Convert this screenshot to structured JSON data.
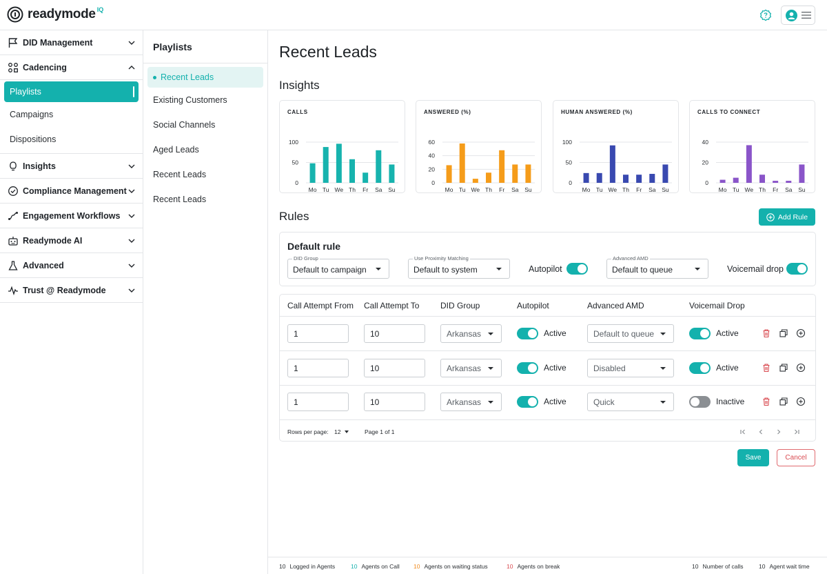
{
  "brand": {
    "name": "readymode",
    "badge": "IQ",
    "accent": "#14b1ad"
  },
  "topbar": {
    "help_icon": "help-circle-icon",
    "user_icon": "user-avatar-icon",
    "menu_icon": "hamburger-icon"
  },
  "nav": {
    "groups": [
      {
        "label": "DID Management",
        "icon": "flag-icon",
        "expanded": false
      },
      {
        "label": "Cadencing",
        "icon": "nodes-icon",
        "expanded": true
      },
      {
        "label": "Insights",
        "icon": "lightbulb-icon",
        "expanded": false
      },
      {
        "label": "Compliance Management",
        "icon": "check-badge-icon",
        "expanded": false
      },
      {
        "label": "Engagement Workflows",
        "icon": "workflow-icon",
        "expanded": false
      },
      {
        "label": "Readymode AI",
        "icon": "robot-icon",
        "expanded": false
      },
      {
        "label": "Advanced",
        "icon": "flask-icon",
        "expanded": false
      },
      {
        "label": "Trust @ Readymode",
        "icon": "pulse-icon",
        "expanded": false
      }
    ],
    "cadencing_items": [
      "Playlists",
      "Campaigns",
      "Dispositions"
    ]
  },
  "playlists": {
    "title": "Playlists",
    "items": [
      "Recent Leads",
      "Existing Customers",
      "Social Channels",
      "Aged Leads",
      "Recent Leads",
      "Recent Leads"
    ]
  },
  "main": {
    "title": "Recent Leads",
    "insights_title": "Insights",
    "rules_title": "Rules",
    "add_rule_label": "Add Rule"
  },
  "chart_data": [
    {
      "type": "bar",
      "title": "CALLS",
      "categories": [
        "Mo",
        "Tu",
        "We",
        "Th",
        "Fr",
        "Sa",
        "Su"
      ],
      "values": [
        48,
        88,
        96,
        58,
        25,
        80,
        45
      ],
      "yticks": [
        "100",
        "50",
        "0"
      ],
      "ylim": [
        0,
        100
      ],
      "color": "#17b3ae"
    },
    {
      "type": "bar",
      "title": "ANSWERED (%)",
      "categories": [
        "Mo",
        "Tu",
        "We",
        "Th",
        "Fr",
        "Sa",
        "Su"
      ],
      "values": [
        26,
        58,
        6,
        15,
        48,
        27,
        27
      ],
      "yticks": [
        "60",
        "40",
        "20",
        "0"
      ],
      "ylim": [
        0,
        60
      ],
      "color": "#f59c1a"
    },
    {
      "type": "bar",
      "title": "HUMAN ANSWERED (%)",
      "categories": [
        "Mo",
        "Tu",
        "We",
        "Th",
        "Fr",
        "Sa",
        "Su"
      ],
      "values": [
        24,
        24,
        92,
        20,
        20,
        22,
        45
      ],
      "yticks": [
        "100",
        "50",
        "0"
      ],
      "ylim": [
        0,
        100
      ],
      "color": "#3949b0"
    },
    {
      "type": "bar",
      "title": "CALLS TO CONNECT",
      "categories": [
        "Mo",
        "Tu",
        "We",
        "Th",
        "Fr",
        "Sa",
        "Su"
      ],
      "values": [
        3,
        5,
        37,
        8,
        2,
        2,
        18
      ],
      "yticks": [
        "40",
        "20",
        "0"
      ],
      "ylim": [
        0,
        40
      ],
      "color": "#8a55c9"
    }
  ],
  "default_rule": {
    "title": "Default rule",
    "did_group": {
      "label": "DID Group",
      "value": "Default to campaign"
    },
    "proximity": {
      "label": "Use Proximity Matching",
      "value": "Default to system"
    },
    "autopilot_label": "Autopilot",
    "autopilot_on": true,
    "amd": {
      "label": "Advanced AMD",
      "value": "Default to queue"
    },
    "voicemail_label": "Voicemail drop",
    "voicemail_on": true
  },
  "table": {
    "headers": [
      "Call Attempt From",
      "Call Attempt To",
      "DID Group",
      "Autopilot",
      "Advanced AMD",
      "Voicemail Drop"
    ],
    "rows": [
      {
        "from": "1",
        "to": "10",
        "did": "Arkansas",
        "autopilot": "Active",
        "autopilot_on": true,
        "amd": "Default to queue",
        "voicemail": "Active",
        "voicemail_on": true
      },
      {
        "from": "1",
        "to": "10",
        "did": "Arkansas",
        "autopilot": "Active",
        "autopilot_on": true,
        "amd": "Disabled",
        "voicemail": "Active",
        "voicemail_on": true
      },
      {
        "from": "1",
        "to": "10",
        "did": "Arkansas",
        "autopilot": "Active",
        "autopilot_on": true,
        "amd": "Quick",
        "voicemail": "Inactive",
        "voicemail_on": false
      }
    ],
    "rows_per_page_label": "Rows per page:",
    "rows_per_page": "12",
    "page_label": "Page 1 of 1"
  },
  "actions": {
    "save": "Save",
    "cancel": "Cancel"
  },
  "status": [
    {
      "num": "10",
      "label": "Logged in Agents",
      "color": "#1f2328"
    },
    {
      "num": "10",
      "label": "Agents on Call",
      "color": "#14b1ad"
    },
    {
      "num": "10",
      "label": "Agents on waiting status",
      "color": "#f08a1c"
    },
    {
      "num": "10",
      "label": "Agents on break",
      "color": "#d94a50"
    },
    {
      "num": "10",
      "label": "Number of calls",
      "color": "#1f2328"
    },
    {
      "num": "10",
      "label": "Agent wait time",
      "color": "#1f2328"
    }
  ]
}
